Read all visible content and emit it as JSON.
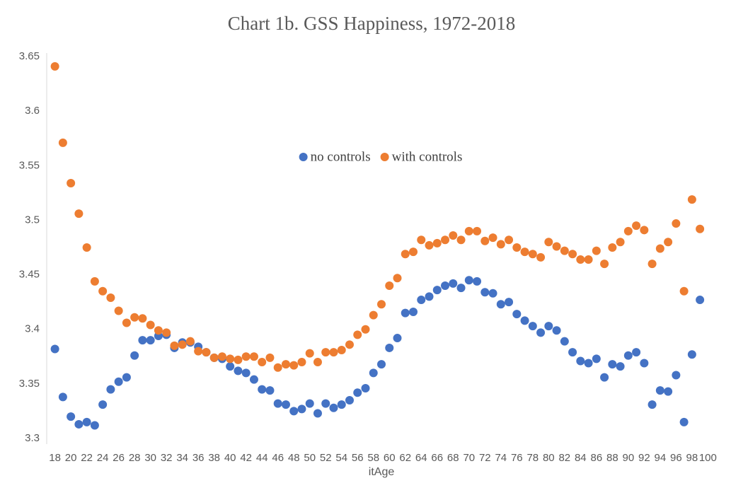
{
  "chart_data": {
    "type": "scatter",
    "title": "Chart 1b.  GSS Happiness, 1972-2018",
    "x_label": "itAge",
    "categories": [
      18,
      null,
      20,
      null,
      22,
      null,
      24,
      null,
      26,
      null,
      28,
      null,
      30,
      null,
      32,
      null,
      34,
      null,
      36,
      null,
      38,
      null,
      40,
      null,
      42,
      null,
      44,
      null,
      46,
      null,
      48,
      null,
      50,
      null,
      52,
      null,
      54,
      null,
      56,
      null,
      58,
      null,
      60,
      null,
      62,
      null,
      64,
      null,
      66,
      null,
      68,
      null,
      70,
      null,
      72,
      null,
      74,
      null,
      76,
      null,
      78,
      null,
      80,
      null,
      82,
      null,
      84,
      null,
      86,
      null,
      88,
      null,
      90,
      null,
      92,
      null,
      94,
      null,
      96,
      null,
      98,
      null,
      100
    ],
    "series": [
      {
        "name": "no controls",
        "color": "#4472c4",
        "values": [
          3.382,
          3.338,
          3.32,
          3.313,
          3.315,
          3.312,
          3.331,
          3.345,
          3.352,
          3.356,
          3.376,
          3.39,
          3.39,
          3.394,
          3.395,
          3.383,
          3.388,
          3.388,
          3.384,
          3.379,
          3.374,
          3.373,
          3.366,
          3.362,
          3.36,
          3.354,
          3.345,
          3.344,
          3.332,
          3.331,
          3.325,
          3.327,
          3.332,
          3.323,
          3.332,
          3.328,
          3.331,
          3.335,
          3.342,
          3.346,
          3.36,
          3.368,
          3.383,
          3.392,
          3.415,
          3.416,
          3.427,
          3.43,
          3.436,
          3.44,
          3.442,
          3.438,
          3.445,
          3.444,
          3.434,
          3.433,
          3.423,
          3.425,
          3.414,
          3.408,
          3.403,
          3.397,
          3.403,
          3.399,
          3.389,
          3.379,
          3.371,
          3.369,
          3.373,
          3.356,
          3.368,
          3.366,
          3.376,
          3.379,
          3.369,
          3.331,
          3.344,
          3.343,
          3.358,
          3.315,
          3.377,
          3.427,
          null
        ]
      },
      {
        "name": "with controls",
        "color": "#ed7d31",
        "values": [
          3.641,
          3.571,
          3.534,
          3.506,
          3.475,
          3.444,
          3.435,
          3.429,
          3.417,
          3.406,
          3.411,
          3.41,
          3.404,
          3.399,
          3.397,
          3.385,
          3.386,
          3.389,
          3.38,
          3.379,
          3.374,
          3.375,
          3.373,
          3.372,
          3.375,
          3.375,
          3.37,
          3.374,
          3.365,
          3.368,
          3.367,
          3.37,
          3.378,
          3.37,
          3.379,
          3.379,
          3.381,
          3.386,
          3.395,
          3.4,
          3.413,
          3.423,
          3.44,
          3.447,
          3.469,
          3.471,
          3.482,
          3.477,
          3.479,
          3.482,
          3.486,
          3.482,
          3.49,
          3.49,
          3.481,
          3.484,
          3.478,
          3.482,
          3.475,
          3.471,
          3.469,
          3.466,
          3.48,
          3.476,
          3.472,
          3.469,
          3.464,
          3.464,
          3.472,
          3.46,
          3.475,
          3.48,
          3.49,
          3.495,
          3.491,
          3.46,
          3.474,
          3.48,
          3.497,
          3.435,
          3.519,
          3.492,
          null
        ]
      }
    ],
    "ylim": [
      3.3,
      3.65
    ],
    "yticks": [
      3.3,
      3.35,
      3.4,
      3.45,
      3.5,
      3.55,
      3.6,
      3.65
    ],
    "grid": false,
    "legend": "top"
  }
}
